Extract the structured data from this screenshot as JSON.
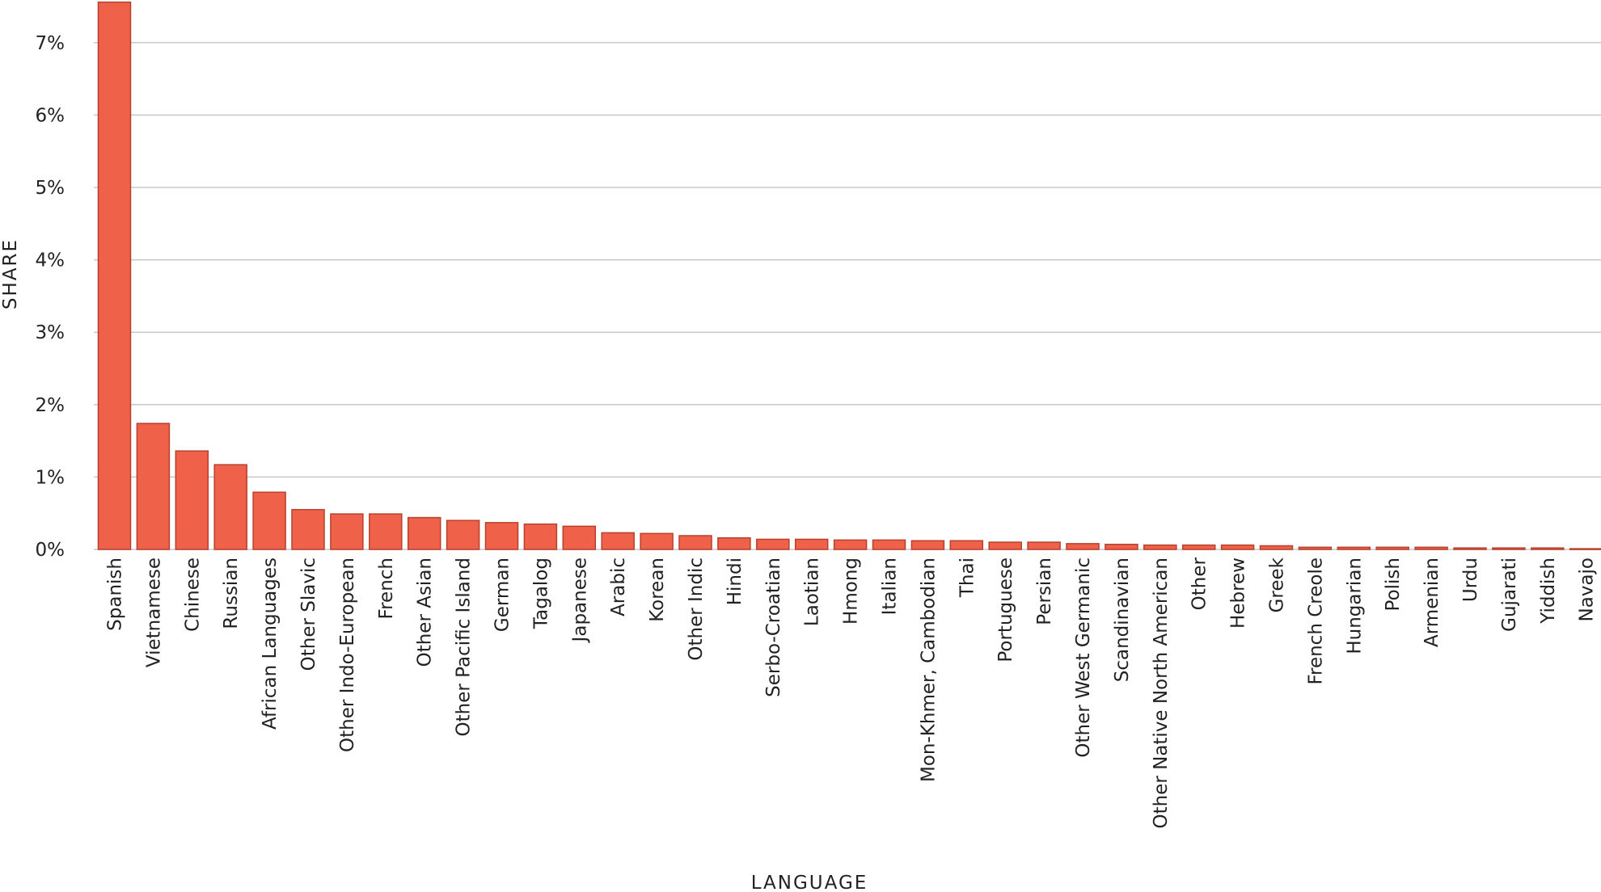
{
  "chart_data": {
    "type": "bar",
    "xlabel": "LANGUAGE",
    "ylabel": "SHARE",
    "ylim": [
      0,
      7.5
    ],
    "yticks": [
      0,
      1,
      2,
      3,
      4,
      5,
      6,
      7
    ],
    "ytick_labels": [
      "0%",
      "1%",
      "2%",
      "3%",
      "4%",
      "5%",
      "6%",
      "7%"
    ],
    "grid": true,
    "bar_color": "#ef6148",
    "bar_edge_color": "#b8412e",
    "categories": [
      "Spanish",
      "Vietnamese",
      "Chinese",
      "Russian",
      "African Languages",
      "Other Slavic",
      "Other Indo-European",
      "French",
      "Other Asian",
      "Other Pacific Island",
      "German",
      "Tagalog",
      "Japanese",
      "Arabic",
      "Korean",
      "Other Indic",
      "Hindi",
      "Serbo-Croatian",
      "Laotian",
      "Hmong",
      "Italian",
      "Mon-Khmer, Cambodian",
      "Thai",
      "Portuguese",
      "Persian",
      "Other West Germanic",
      "Scandinavian",
      "Other Native North American",
      "Other",
      "Hebrew",
      "Greek",
      "French Creole",
      "Hungarian",
      "Polish",
      "Armenian",
      "Urdu",
      "Gujarati",
      "Yiddish",
      "Navajo"
    ],
    "values": [
      7.56,
      1.74,
      1.36,
      1.17,
      0.79,
      0.55,
      0.49,
      0.49,
      0.44,
      0.4,
      0.37,
      0.35,
      0.32,
      0.23,
      0.22,
      0.19,
      0.16,
      0.14,
      0.14,
      0.13,
      0.13,
      0.12,
      0.12,
      0.1,
      0.1,
      0.08,
      0.07,
      0.06,
      0.06,
      0.06,
      0.05,
      0.03,
      0.03,
      0.03,
      0.03,
      0.02,
      0.02,
      0.02,
      0.01
    ]
  }
}
